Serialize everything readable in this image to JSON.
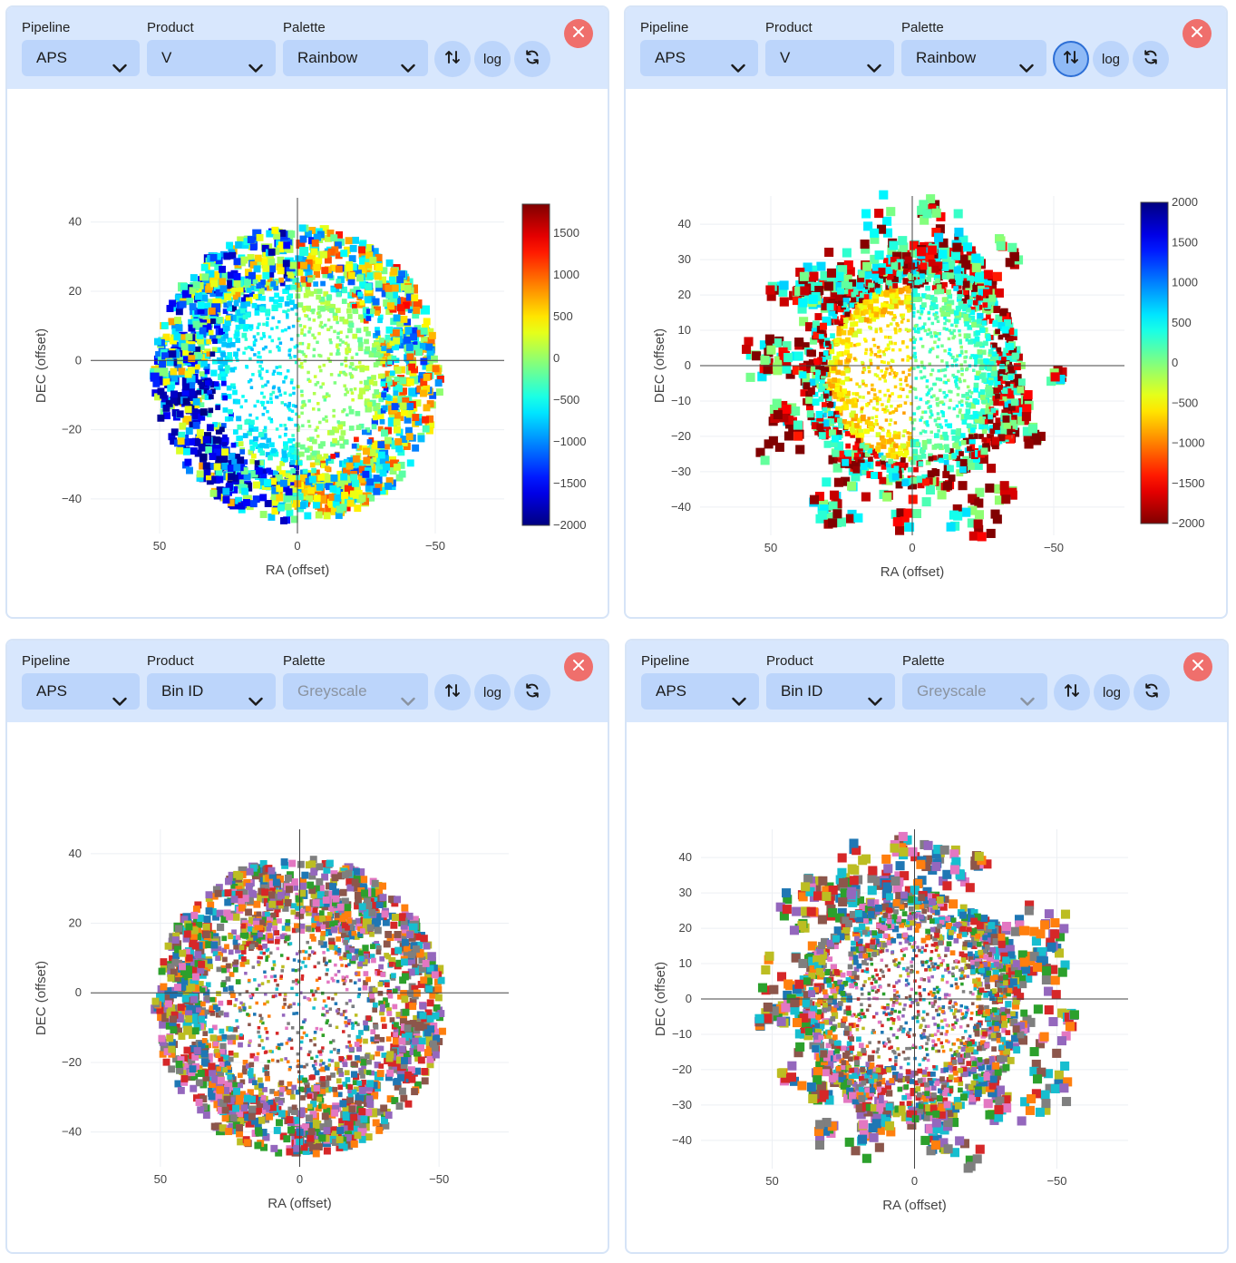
{
  "labels": {
    "pipeline": "Pipeline",
    "product": "Product",
    "palette": "Palette",
    "log": "log"
  },
  "colors": {
    "toolbar_bg": "#d8e7fd",
    "control_bg": "#bcd5fb",
    "close_bg": "#ef6f6c",
    "active_ring": "#2d6fd6"
  },
  "panels": [
    {
      "pipeline": "APS",
      "product": "V",
      "palette": "Rainbow",
      "palette_disabled": false,
      "flip_active": false,
      "colormap": "jet",
      "chart_data": {
        "type": "scatter",
        "xlabel": "RA (offset)",
        "ylabel": "DEC (offset)",
        "xlim": [
          75,
          -75
        ],
        "ylim": [
          -50,
          47
        ],
        "xticks": [
          50,
          0,
          -50
        ],
        "yticks": [
          40,
          20,
          0,
          -20,
          -40
        ],
        "colorbar": {
          "range": [
            -2000,
            1850
          ],
          "ticks": [
            1500,
            1000,
            500,
            0,
            -500,
            -1000,
            -1500,
            -2000
          ],
          "reversed": false
        },
        "map_shape": "disk",
        "map_radius": 52,
        "map_center": [
          0,
          -4
        ]
      }
    },
    {
      "pipeline": "APS",
      "product": "V",
      "palette": "Rainbow",
      "palette_disabled": false,
      "flip_active": true,
      "colormap": "jet_r",
      "chart_data": {
        "type": "scatter",
        "xlabel": "RA (offset)",
        "ylabel": "DEC (offset)",
        "xlim": [
          75,
          -75
        ],
        "ylim": [
          -48,
          48
        ],
        "xticks": [
          50,
          0,
          -50
        ],
        "yticks": [
          40,
          30,
          20,
          10,
          0,
          -10,
          -20,
          -30,
          -40
        ],
        "colorbar": {
          "range": [
            -2000,
            2000
          ],
          "ticks": [
            2000,
            1500,
            1000,
            500,
            0,
            -500,
            -1000,
            -1500,
            -2000
          ],
          "reversed": true
        },
        "map_shape": "irregular",
        "map_radius": 50,
        "map_center": [
          0,
          -2
        ]
      }
    },
    {
      "pipeline": "APS",
      "product": "Bin ID",
      "palette": "Greyscale",
      "palette_disabled": true,
      "flip_active": false,
      "colormap": "categorical",
      "chart_data": {
        "type": "scatter",
        "xlabel": "RA (offset)",
        "ylabel": "DEC (offset)",
        "xlim": [
          75,
          -75
        ],
        "ylim": [
          -50,
          47
        ],
        "xticks": [
          50,
          0,
          -50
        ],
        "yticks": [
          40,
          20,
          0,
          -20,
          -40
        ],
        "map_shape": "disk",
        "map_radius": 52,
        "map_center": [
          0,
          -4
        ]
      }
    },
    {
      "pipeline": "APS",
      "product": "Bin ID",
      "palette": "Greyscale",
      "palette_disabled": true,
      "flip_active": false,
      "colormap": "categorical",
      "chart_data": {
        "type": "scatter",
        "xlabel": "RA (offset)",
        "ylabel": "DEC (offset)",
        "xlim": [
          75,
          -75
        ],
        "ylim": [
          -48,
          48
        ],
        "xticks": [
          50,
          0,
          -50
        ],
        "yticks": [
          40,
          30,
          20,
          10,
          0,
          -10,
          -20,
          -30,
          -40
        ],
        "map_shape": "irregular",
        "map_radius": 50,
        "map_center": [
          0,
          -2
        ]
      }
    }
  ]
}
